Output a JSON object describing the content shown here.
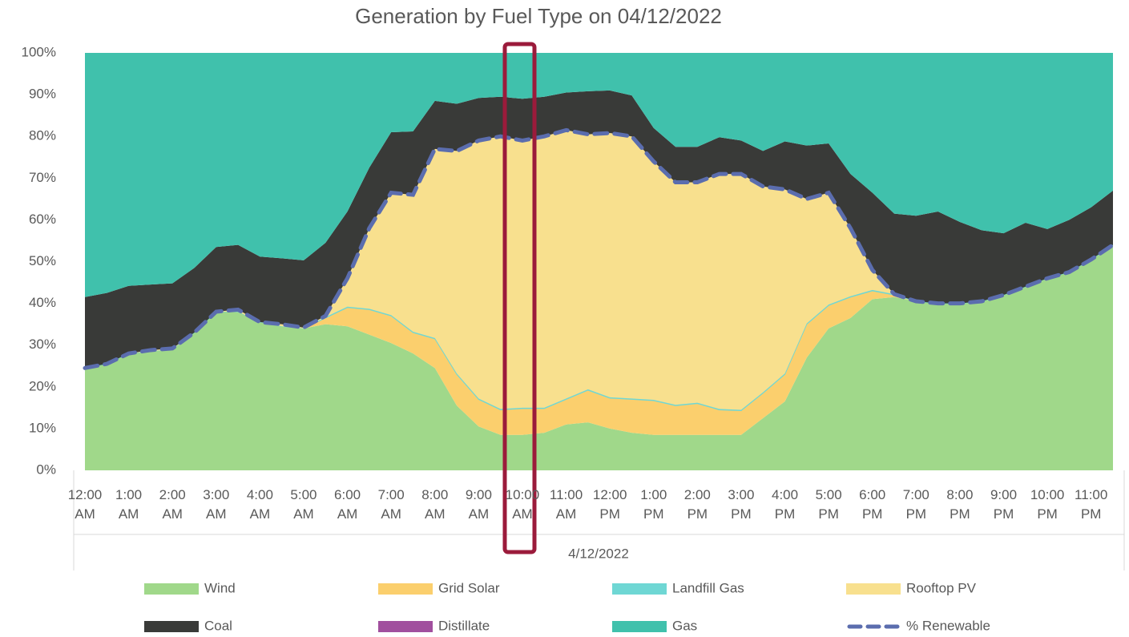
{
  "chart_data": {
    "type": "stacked-area",
    "title": "Generation by Fuel Type on 04/12/2022",
    "categories": [
      "12:00 AM",
      null,
      "1:00 AM",
      null,
      "2:00 AM",
      null,
      "3:00 AM",
      null,
      "4:00 AM",
      null,
      "5:00 AM",
      null,
      "6:00 AM",
      null,
      "7:00 AM",
      null,
      "8:00 AM",
      null,
      "9:00 AM",
      null,
      "10:00 AM",
      null,
      "11:00 AM",
      null,
      "12:00 PM",
      null,
      "1:00 PM",
      null,
      "2:00 PM",
      null,
      "3:00 PM",
      null,
      "4:00 PM",
      null,
      "5:00 PM",
      null,
      "6:00 PM",
      null,
      "7:00 PM",
      null,
      "8:00 PM",
      null,
      "9:00 PM",
      null,
      "10:00 PM",
      null,
      "11:00 PM",
      null
    ],
    "x_group_label": "4/12/2022",
    "ylim": [
      0,
      100
    ],
    "yticks": [
      {
        "value": 0,
        "label": "0%"
      },
      {
        "value": 10,
        "label": "10%"
      },
      {
        "value": 20,
        "label": "20%"
      },
      {
        "value": 30,
        "label": "30%"
      },
      {
        "value": 40,
        "label": "40%"
      },
      {
        "value": 50,
        "label": "50%"
      },
      {
        "value": 60,
        "label": "60%"
      },
      {
        "value": 70,
        "label": "70%"
      },
      {
        "value": 80,
        "label": "80%"
      },
      {
        "value": 90,
        "label": "90%"
      },
      {
        "value": 100,
        "label": "100%"
      }
    ],
    "grid": false,
    "series": [
      {
        "name": "Wind",
        "color": "#a0d88a",
        "values": [
          24.5,
          25.5,
          28,
          28.5,
          29,
          33,
          38,
          38,
          35.5,
          34.5,
          34,
          35,
          34.5,
          32.5,
          30.5,
          28,
          24.5,
          15.5,
          10.5,
          8.5,
          8.5,
          9,
          11,
          11.5,
          10,
          9,
          8.5,
          8.5,
          8.5,
          8.5,
          8.5,
          12.5,
          16.5,
          27,
          34,
          36.5,
          41,
          41.5,
          40.5,
          40,
          40,
          40.5,
          42,
          44,
          46,
          47.5,
          50.5,
          54
        ]
      },
      {
        "name": "Grid Solar",
        "color": "#fbcf6d",
        "values": [
          0,
          0,
          0,
          0,
          0,
          0,
          0,
          0,
          0,
          0,
          0,
          1.5,
          4.5,
          6,
          6.5,
          5,
          7,
          7.5,
          6.5,
          6,
          6.3,
          5.8,
          6,
          7.7,
          7.3,
          8,
          8.2,
          7,
          7.5,
          6,
          5.8,
          6,
          6.5,
          8,
          5.5,
          5,
          2,
          0.5,
          0,
          0,
          0,
          0,
          0,
          0,
          0,
          0,
          0,
          0
        ]
      },
      {
        "name": "Landfill Gas",
        "color": "#6fd7d4",
        "values": [
          0,
          0,
          0,
          0,
          0,
          0,
          0,
          0,
          0,
          0,
          0,
          0.2,
          0.2,
          0.2,
          0.2,
          0.2,
          0.2,
          0.2,
          0.2,
          0.2,
          0.2,
          0.2,
          0.2,
          0.2,
          0.2,
          0.2,
          0.2,
          0.2,
          0.2,
          0.2,
          0.2,
          0.2,
          0.2,
          0.2,
          0.2,
          0.2,
          0.2,
          0.2,
          0,
          0,
          0,
          0,
          0,
          0,
          0,
          0,
          0,
          0
        ]
      },
      {
        "name": "Rooftop PV",
        "color": "#f8e08e",
        "values": [
          0,
          0,
          0,
          0.3,
          0.2,
          0,
          0,
          0.5,
          0,
          0.5,
          0.2,
          0.3,
          6.8,
          19.3,
          29.3,
          32.8,
          45.3,
          53.3,
          61.8,
          65.3,
          64,
          65,
          64.3,
          61.1,
          63.3,
          62.8,
          57.1,
          53.3,
          52.8,
          56.3,
          56.5,
          49.3,
          44.1,
          29.8,
          26.8,
          16.3,
          4.8,
          0,
          0,
          0,
          0,
          0,
          0,
          0,
          0,
          0,
          0,
          0
        ]
      },
      {
        "name": "Coal",
        "color": "#393a38",
        "values": [
          17,
          17,
          16.2,
          15.7,
          15.6,
          15.5,
          15.5,
          15.5,
          15.7,
          15.8,
          16.1,
          17.5,
          16,
          14.5,
          14.5,
          15.2,
          11.5,
          11.3,
          10.2,
          9.5,
          10,
          9.5,
          9,
          10.3,
          10.2,
          9.8,
          8,
          8.5,
          8.5,
          8.8,
          8,
          8.5,
          11.5,
          12.8,
          11.8,
          13,
          18.5,
          19.3,
          20.5,
          22,
          19.5,
          17,
          14.8,
          15.3,
          11.8,
          12.5,
          12.5,
          13
        ]
      },
      {
        "name": "Distillate",
        "color": "#a14f9e",
        "values": [
          0,
          0,
          0,
          0,
          0,
          0,
          0,
          0,
          0,
          0,
          0,
          0,
          0,
          0,
          0,
          0,
          0,
          0,
          0,
          0,
          0,
          0,
          0,
          0,
          0,
          0,
          0,
          0,
          0,
          0,
          0,
          0,
          0,
          0,
          0,
          0,
          0,
          0,
          0,
          0,
          0,
          0,
          0,
          0,
          0,
          0,
          0,
          0
        ]
      },
      {
        "name": "Gas",
        "color": "#40c1ac",
        "values": [
          58.5,
          57.5,
          55.8,
          55.5,
          55.2,
          51.5,
          46.5,
          46,
          48.8,
          49.2,
          49.7,
          45.5,
          38,
          27.5,
          19,
          18.8,
          11.5,
          12.2,
          10.8,
          10.5,
          11,
          10.5,
          9.5,
          9.2,
          9,
          10.2,
          18,
          22.5,
          22.5,
          20.2,
          21,
          23.5,
          21.2,
          22.2,
          21.7,
          29,
          33.5,
          38.5,
          39,
          38,
          40.5,
          42.5,
          43.2,
          40.7,
          42.2,
          40,
          37,
          33
        ]
      }
    ],
    "line_series": {
      "name": "% Renewable",
      "color": "#5b6dae",
      "values": [
        24.5,
        25.5,
        28,
        28.8,
        29.2,
        33,
        38,
        38.5,
        35.5,
        35,
        34.2,
        37,
        46,
        58,
        66.5,
        66,
        77,
        76.5,
        79,
        80,
        79,
        80,
        81.5,
        80.5,
        80.8,
        80,
        74,
        69,
        69,
        71,
        71,
        68,
        67.3,
        65,
        66.5,
        58,
        48,
        42.2,
        40.5,
        40,
        40,
        40.5,
        42,
        44,
        46,
        47.5,
        50.5,
        54
      ]
    }
  }
}
